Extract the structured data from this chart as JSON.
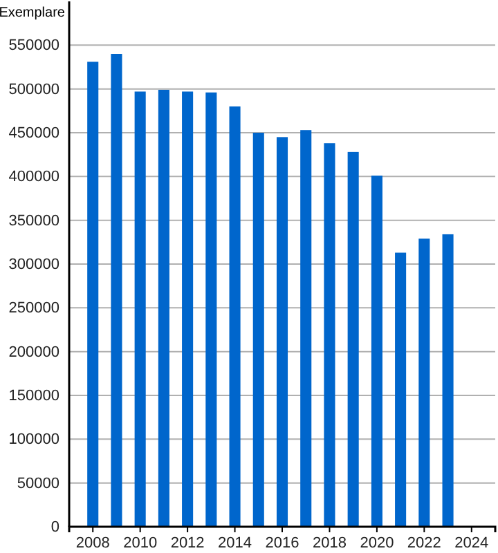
{
  "chart_data": {
    "type": "bar",
    "ylabel": "Exemplare",
    "x": [
      2008,
      2009,
      2010,
      2011,
      2012,
      2013,
      2014,
      2015,
      2016,
      2017,
      2018,
      2019,
      2020,
      2021,
      2022,
      2023
    ],
    "values": [
      531000,
      540000,
      497000,
      499000,
      497000,
      496000,
      480000,
      450000,
      445000,
      453000,
      438000,
      428000,
      401000,
      313000,
      329000,
      334000
    ],
    "color": "#0066cc",
    "xlim": [
      2007,
      2025
    ],
    "xticks": [
      2008,
      2010,
      2012,
      2014,
      2016,
      2018,
      2020,
      2022,
      2024
    ],
    "ylim": [
      0,
      600000
    ],
    "yticks": [
      0,
      50000,
      100000,
      150000,
      200000,
      250000,
      300000,
      350000,
      400000,
      450000,
      500000,
      550000
    ],
    "grid": "y"
  }
}
